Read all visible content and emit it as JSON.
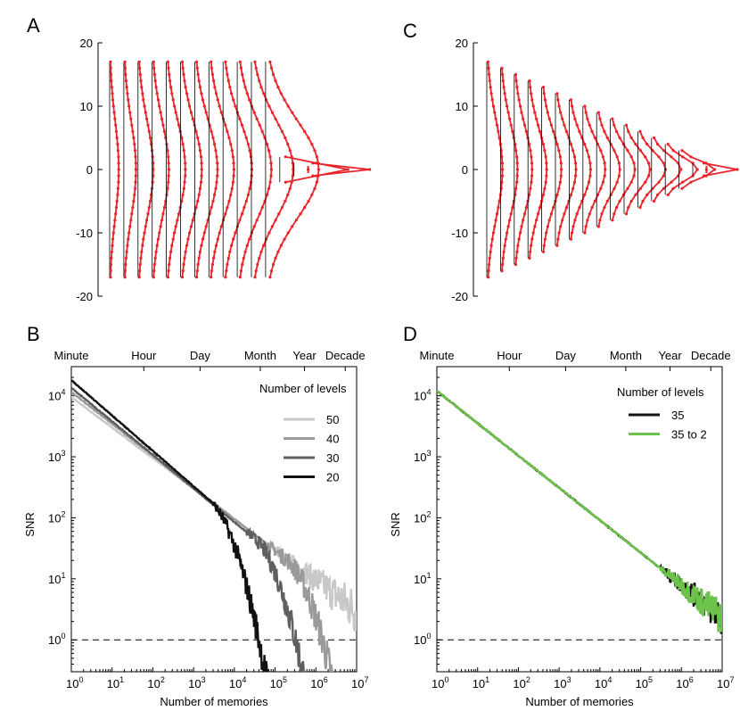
{
  "panels": [
    {
      "id": "A"
    },
    {
      "id": "C"
    },
    {
      "id": "B"
    },
    {
      "id": "D"
    }
  ],
  "chart_data": [
    {
      "panel": "A",
      "type": "line",
      "ylim": [
        -20,
        20
      ],
      "yticks": [
        "20",
        "10",
        "0",
        "-10",
        "-20"
      ],
      "ytick_values": [
        20,
        10,
        0,
        -10,
        -20
      ],
      "levels_per_column": [
        35,
        35,
        35,
        35,
        35,
        35,
        35,
        35,
        35,
        35,
        35,
        35,
        5,
        3,
        1
      ],
      "widths": [
        0.12,
        0.16,
        0.2,
        0.22,
        0.25,
        0.28,
        0.3,
        0.33,
        0.38,
        0.45,
        0.55,
        0.7,
        0.9,
        1.0,
        1.0
      ],
      "color": "#e8242a"
    },
    {
      "panel": "C",
      "type": "line",
      "ylim": [
        -20,
        20
      ],
      "yticks": [
        "20",
        "10",
        "0",
        "-10",
        "-20"
      ],
      "ytick_values": [
        20,
        10,
        0,
        -10,
        -20
      ],
      "levels_per_column": [
        35,
        33,
        31,
        29,
        27,
        25,
        23,
        21,
        19,
        17,
        15,
        13,
        11,
        9,
        7,
        3,
        1
      ],
      "widths": [
        0.35,
        0.38,
        0.4,
        0.42,
        0.44,
        0.46,
        0.48,
        0.5,
        0.52,
        0.55,
        0.58,
        0.62,
        0.66,
        0.72,
        0.8,
        1.0,
        0.5
      ],
      "color": "#e8242a"
    },
    {
      "panel": "B",
      "type": "line",
      "xscale": "log",
      "yscale": "log",
      "xlim": [
        1,
        10000000
      ],
      "ylim": [
        0.3,
        30000
      ],
      "xlabel": "Number of memories",
      "ylabel": "SNR",
      "xticks_exp": [
        "0",
        "1",
        "2",
        "3",
        "4",
        "5",
        "6",
        "7"
      ],
      "yticks_exp": [
        "0",
        "1",
        "2",
        "3",
        "4"
      ],
      "top_axis": [
        {
          "label": "Minute",
          "x": 1
        },
        {
          "label": "Hour",
          "x": 60
        },
        {
          "label": "Day",
          "x": 1440
        },
        {
          "label": "Month",
          "x": 43200
        },
        {
          "label": "Year",
          "x": 525600
        },
        {
          "label": "Decade",
          "x": 5256000
        }
      ],
      "threshold": 1,
      "legend_title": "Number of levels",
      "legend_position": "top-right",
      "series": [
        {
          "name": "50",
          "color": "#c8c8c8",
          "y0": 9500,
          "slope": -0.5,
          "noise_from": 100000
        },
        {
          "name": "40",
          "color": "#9a9a9a",
          "y0": 11500,
          "slope": -0.52,
          "cut": 3000000,
          "noise_from": 60000
        },
        {
          "name": "30",
          "color": "#5f5f5f",
          "y0": 13500,
          "slope": -0.55,
          "cut": 500000,
          "noise_from": 20000
        },
        {
          "name": "20",
          "color": "#111111",
          "y0": 18000,
          "slope": -0.58,
          "cut": 40000,
          "noise_from": 3000
        }
      ]
    },
    {
      "panel": "D",
      "type": "line",
      "xscale": "log",
      "yscale": "log",
      "xlim": [
        1,
        10000000
      ],
      "ylim": [
        0.3,
        30000
      ],
      "xlabel": "Number of memories",
      "ylabel": "SNR",
      "xticks_exp": [
        "0",
        "1",
        "2",
        "3",
        "4",
        "5",
        "6",
        "7"
      ],
      "yticks_exp": [
        "0",
        "1",
        "2",
        "3",
        "4"
      ],
      "top_axis": [
        {
          "label": "Minute",
          "x": 1
        },
        {
          "label": "Hour",
          "x": 60
        },
        {
          "label": "Day",
          "x": 1440
        },
        {
          "label": "Month",
          "x": 43200
        },
        {
          "label": "Year",
          "x": 525600
        },
        {
          "label": "Decade",
          "x": 5256000
        }
      ],
      "threshold": 1,
      "legend_title": "Number of levels",
      "legend_position": "top-right",
      "series": [
        {
          "name": "35",
          "color": "#111111",
          "y0": 12000,
          "slope": -0.53,
          "noise_from": 300000
        },
        {
          "name": "35 to 2",
          "color": "#6cc24a",
          "y0": 12000,
          "slope": -0.53,
          "noise_from": 300000
        }
      ]
    }
  ]
}
